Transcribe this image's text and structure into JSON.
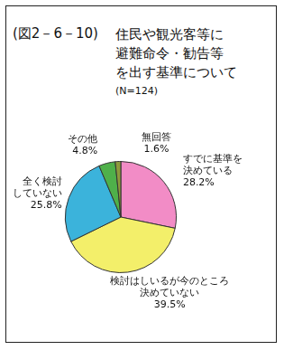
{
  "chart_data": {
    "type": "pie",
    "annotation": "(図2－6－10)",
    "title": "住民や観光客等に\n避難命令・勧告等\nを出す基準について",
    "subtitle": "(N=124)",
    "categories": [
      "すでに基準を\n決めている",
      "検討はしいるが今のところ\n決めていない",
      "全く検討\nしていない",
      "その他",
      "無回答"
    ],
    "values": [
      28.2,
      39.5,
      25.8,
      4.8,
      1.6
    ],
    "value_labels": [
      "28.2%",
      "39.5%",
      "25.8%",
      "4.8%",
      "1.6%"
    ],
    "colors": [
      "#f28cc6",
      "#f3ef6a",
      "#3bb3db",
      "#4fb04a",
      "#8e9a3c"
    ],
    "data_labels": true
  }
}
